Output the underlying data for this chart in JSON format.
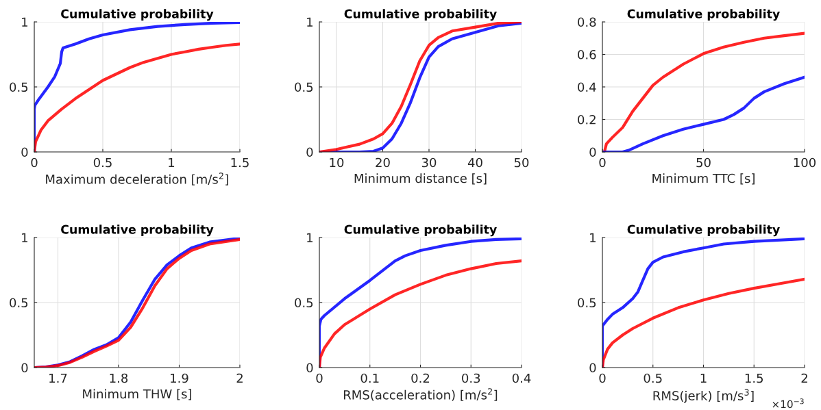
{
  "chart_data": [
    {
      "type": "line",
      "title": "Cumulative probability",
      "xlabel": "Maximum deceleration [m/s$^{2}$]",
      "xlim": [
        0,
        1.5
      ],
      "ylim": [
        0,
        1
      ],
      "xticks": [
        0,
        0.5,
        1,
        1.5
      ],
      "yticks": [
        0,
        0.5,
        1
      ],
      "grid": true,
      "legend": false,
      "marker": "none",
      "line_style": "solid",
      "series": [
        {
          "color": "#0000ff",
          "x": [
            0,
            0,
            0.005,
            0.03,
            0.1,
            0.15,
            0.19,
            0.2,
            0.21,
            0.3,
            0.4,
            0.5,
            0.7,
            0.9,
            1.1,
            1.3,
            1.5
          ],
          "values": [
            0,
            0.33,
            0.36,
            0.4,
            0.5,
            0.58,
            0.68,
            0.77,
            0.8,
            0.83,
            0.87,
            0.9,
            0.94,
            0.965,
            0.98,
            0.99,
            0.995
          ]
        },
        {
          "color": "#ff0000",
          "x": [
            0,
            0.01,
            0.05,
            0.1,
            0.2,
            0.3,
            0.4,
            0.5,
            0.6,
            0.7,
            0.8,
            0.9,
            1.0,
            1.1,
            1.2,
            1.3,
            1.4,
            1.5
          ],
          "values": [
            0,
            0.08,
            0.17,
            0.24,
            0.33,
            0.41,
            0.48,
            0.55,
            0.6,
            0.65,
            0.69,
            0.72,
            0.75,
            0.77,
            0.79,
            0.805,
            0.82,
            0.83
          ]
        }
      ]
    },
    {
      "type": "line",
      "title": "Cumulative probability",
      "xlabel": "Minimum distance [s]",
      "xlim": [
        6.3,
        50
      ],
      "ylim": [
        0,
        1
      ],
      "xticks": [
        10,
        20,
        30,
        40,
        50
      ],
      "yticks": [
        0,
        0.5,
        1
      ],
      "grid": true,
      "legend": false,
      "marker": "none",
      "line_style": "solid",
      "series": [
        {
          "color": "#0000ff",
          "x": [
            6.3,
            15,
            18,
            20,
            22,
            24,
            26,
            28,
            30,
            32,
            35,
            40,
            45,
            50
          ],
          "values": [
            0,
            0,
            0.005,
            0.03,
            0.1,
            0.22,
            0.38,
            0.57,
            0.73,
            0.81,
            0.87,
            0.92,
            0.97,
            0.99
          ]
        },
        {
          "color": "#ff0000",
          "x": [
            6.3,
            10,
            15,
            18,
            20,
            22,
            24,
            26,
            28,
            30,
            32,
            35,
            40,
            45,
            50
          ],
          "values": [
            0,
            0.02,
            0.06,
            0.1,
            0.14,
            0.22,
            0.35,
            0.52,
            0.7,
            0.82,
            0.88,
            0.93,
            0.96,
            0.99,
            1.0
          ]
        }
      ]
    },
    {
      "type": "line",
      "title": "Cumulative probability",
      "xlabel": "Minimum TTC [s]",
      "xlim": [
        0,
        100
      ],
      "ylim": [
        0,
        0.8
      ],
      "xticks": [
        0,
        50,
        100
      ],
      "yticks": [
        0,
        0.2,
        0.4,
        0.6,
        0.8
      ],
      "grid": true,
      "legend": false,
      "marker": "none",
      "line_style": "solid",
      "series": [
        {
          "color": "#ff0000",
          "x": [
            1,
            2,
            5,
            10,
            15,
            20,
            25,
            30,
            40,
            50,
            60,
            70,
            80,
            90,
            100
          ],
          "values": [
            0,
            0.05,
            0.09,
            0.15,
            0.25,
            0.33,
            0.41,
            0.46,
            0.54,
            0.605,
            0.645,
            0.675,
            0.7,
            0.715,
            0.73
          ]
        },
        {
          "color": "#0000ff",
          "x": [
            1,
            10,
            13,
            20,
            30,
            40,
            50,
            60,
            65,
            70,
            75,
            80,
            90,
            100
          ],
          "values": [
            0,
            0,
            0.01,
            0.05,
            0.1,
            0.14,
            0.17,
            0.2,
            0.23,
            0.27,
            0.33,
            0.37,
            0.42,
            0.46
          ]
        }
      ]
    },
    {
      "type": "line",
      "title": "Cumulative probability",
      "xlabel": "Minimum THW [s]",
      "xlim": [
        1.661,
        2
      ],
      "ylim": [
        0,
        1
      ],
      "xticks": [
        1.7,
        1.8,
        1.9,
        2
      ],
      "yticks": [
        0,
        0.5,
        1
      ],
      "grid": true,
      "legend": false,
      "marker": "none",
      "line_style": "solid",
      "series": [
        {
          "color": "#0000ff",
          "x": [
            1.661,
            1.68,
            1.7,
            1.72,
            1.74,
            1.76,
            1.78,
            1.8,
            1.82,
            1.84,
            1.86,
            1.88,
            1.9,
            1.92,
            1.95,
            2
          ],
          "values": [
            0,
            0.005,
            0.02,
            0.045,
            0.09,
            0.14,
            0.175,
            0.23,
            0.35,
            0.52,
            0.68,
            0.79,
            0.86,
            0.92,
            0.965,
            0.995
          ]
        },
        {
          "color": "#ff0000",
          "x": [
            1.661,
            1.68,
            1.7,
            1.72,
            1.74,
            1.76,
            1.78,
            1.8,
            1.82,
            1.84,
            1.86,
            1.88,
            1.9,
            1.92,
            1.95,
            2
          ],
          "values": [
            0,
            0.003,
            0.015,
            0.04,
            0.08,
            0.125,
            0.165,
            0.21,
            0.31,
            0.46,
            0.63,
            0.76,
            0.84,
            0.9,
            0.95,
            0.985
          ]
        }
      ]
    },
    {
      "type": "line",
      "title": "Cumulative probability",
      "xlabel": "RMS(acceleration) [m/s$^{2}$]",
      "xlim": [
        0,
        0.4
      ],
      "ylim": [
        0,
        1
      ],
      "xticks": [
        0,
        0.1,
        0.2,
        0.3,
        0.4
      ],
      "yticks": [
        0,
        0.5,
        1
      ],
      "grid": true,
      "legend": false,
      "marker": "none",
      "line_style": "solid",
      "series": [
        {
          "color": "#0000ff",
          "x": [
            0,
            0,
            0.003,
            0.01,
            0.05,
            0.1,
            0.15,
            0.17,
            0.2,
            0.25,
            0.3,
            0.35,
            0.4
          ],
          "values": [
            0,
            0.32,
            0.37,
            0.4,
            0.53,
            0.67,
            0.82,
            0.86,
            0.9,
            0.94,
            0.97,
            0.985,
            0.99
          ]
        },
        {
          "color": "#ff0000",
          "x": [
            0,
            0.002,
            0.01,
            0.03,
            0.05,
            0.1,
            0.15,
            0.2,
            0.25,
            0.3,
            0.35,
            0.4
          ],
          "values": [
            0,
            0.08,
            0.15,
            0.26,
            0.33,
            0.45,
            0.56,
            0.64,
            0.71,
            0.76,
            0.8,
            0.82
          ]
        }
      ]
    },
    {
      "type": "line",
      "title": "Cumulative probability",
      "xlabel": "RMS(jerk) [m/s$^{3}$]",
      "annotations": [
        "×10$^{−3}$"
      ],
      "xlim": [
        0,
        2
      ],
      "ylim": [
        0,
        1
      ],
      "xticks": [
        0,
        0.5,
        1,
        1.5,
        2
      ],
      "yticks": [
        0,
        0.5,
        1
      ],
      "grid": true,
      "legend": false,
      "marker": "none",
      "line_style": "solid",
      "series": [
        {
          "color": "#0000ff",
          "x": [
            0,
            0,
            0.05,
            0.1,
            0.2,
            0.3,
            0.35,
            0.4,
            0.45,
            0.5,
            0.6,
            0.8,
            1.0,
            1.2,
            1.5,
            2
          ],
          "values": [
            0,
            0.32,
            0.37,
            0.41,
            0.46,
            0.53,
            0.58,
            0.67,
            0.76,
            0.81,
            0.85,
            0.89,
            0.92,
            0.95,
            0.97,
            0.99
          ]
        },
        {
          "color": "#ff0000",
          "x": [
            0,
            0.01,
            0.05,
            0.1,
            0.2,
            0.3,
            0.5,
            0.75,
            1.0,
            1.25,
            1.5,
            1.75,
            2
          ],
          "values": [
            0,
            0.06,
            0.14,
            0.19,
            0.25,
            0.3,
            0.38,
            0.46,
            0.52,
            0.57,
            0.61,
            0.645,
            0.68
          ]
        }
      ]
    }
  ]
}
